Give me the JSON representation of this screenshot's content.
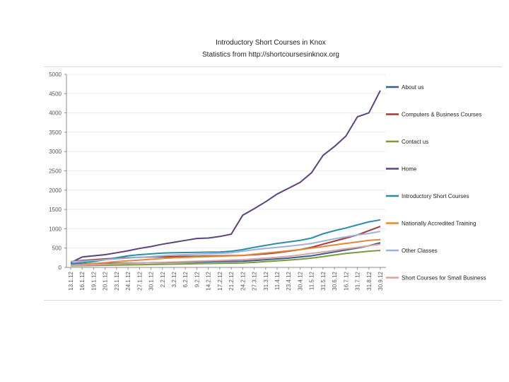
{
  "chart_data": {
    "type": "line",
    "title": "Introductory Short Courses in Knox",
    "subtitle": "Statistics from http://shortcoursesinknox.org",
    "xlabel": "",
    "ylabel": "",
    "ylim": [
      0,
      5000
    ],
    "yticks": [
      "5000",
      "4500",
      "4000",
      "3500",
      "3000",
      "2500",
      "2000",
      "1500",
      "1000",
      "500",
      "0"
    ],
    "ytick_values": [
      5000,
      4500,
      4000,
      3500,
      3000,
      2500,
      2000,
      1500,
      1000,
      500,
      0
    ],
    "categories": [
      "13.1.12",
      "16.1.12",
      "19.1.12",
      "20.1.12",
      "23.1.12",
      "24.1.12",
      "27.1.12",
      "30.1.12",
      "2.2.12",
      "3.2.12",
      "6.2.12",
      "9.2.12",
      "14.2.12",
      "17.2.12",
      "21.2.12",
      "24.2.12",
      "27.3.12",
      "31.3.12",
      "11.4.12",
      "23.4.12",
      "30.4.12",
      "11.5.12",
      "31.5.12",
      "30.6.12",
      "16.7.12",
      "31.7.12",
      "31.8.12",
      "30.9.12"
    ],
    "series": [
      {
        "name": "About us",
        "color": "#3a5f8f",
        "values": [
          80,
          90,
          95,
          100,
          105,
          110,
          115,
          120,
          125,
          130,
          135,
          140,
          145,
          150,
          155,
          160,
          180,
          200,
          220,
          240,
          270,
          300,
          350,
          400,
          450,
          500,
          560,
          640
        ]
      },
      {
        "name": "Computers & Business Courses",
        "color": "#a33a36",
        "values": [
          150,
          180,
          200,
          220,
          240,
          250,
          260,
          270,
          275,
          280,
          285,
          290,
          295,
          300,
          305,
          310,
          330,
          350,
          380,
          420,
          460,
          520,
          600,
          680,
          760,
          840,
          950,
          1060
        ]
      },
      {
        "name": "Contact us",
        "color": "#7b9a3b",
        "values": [
          40,
          45,
          50,
          55,
          60,
          65,
          70,
          75,
          80,
          85,
          90,
          95,
          100,
          105,
          110,
          115,
          130,
          150,
          170,
          190,
          210,
          240,
          280,
          320,
          360,
          390,
          420,
          440
        ]
      },
      {
        "name": "Home",
        "color": "#5b4380",
        "values": [
          120,
          270,
          300,
          330,
          380,
          430,
          490,
          540,
          600,
          650,
          700,
          750,
          760,
          800,
          860,
          1350,
          1520,
          1700,
          1900,
          2050,
          2200,
          2450,
          2900,
          3130,
          3400,
          3900,
          4000,
          4580
        ]
      },
      {
        "name": "Introductory Short Courses",
        "color": "#2f8ba8",
        "values": [
          100,
          120,
          150,
          200,
          250,
          300,
          330,
          350,
          370,
          380,
          385,
          390,
          395,
          400,
          420,
          460,
          520,
          570,
          620,
          660,
          700,
          760,
          870,
          950,
          1020,
          1100,
          1180,
          1230
        ]
      },
      {
        "name": "Nationally Accredited Training",
        "color": "#e0893a",
        "values": [
          60,
          80,
          100,
          120,
          150,
          170,
          190,
          210,
          230,
          250,
          260,
          270,
          280,
          290,
          300,
          310,
          340,
          370,
          400,
          430,
          460,
          500,
          540,
          580,
          620,
          660,
          700,
          720
        ]
      },
      {
        "name": "Other Classes",
        "color": "#9db3d6",
        "values": [
          150,
          160,
          180,
          200,
          220,
          240,
          260,
          280,
          300,
          320,
          330,
          340,
          350,
          360,
          380,
          420,
          460,
          490,
          520,
          550,
          580,
          620,
          680,
          740,
          790,
          840,
          880,
          930
        ]
      },
      {
        "name": "Short Courses for Small Business",
        "color": "#d9a3a3",
        "values": [
          50,
          60,
          70,
          80,
          90,
          100,
          110,
          120,
          130,
          140,
          150,
          160,
          170,
          180,
          190,
          200,
          220,
          240,
          260,
          290,
          320,
          360,
          400,
          440,
          480,
          520,
          560,
          600
        ]
      }
    ]
  }
}
